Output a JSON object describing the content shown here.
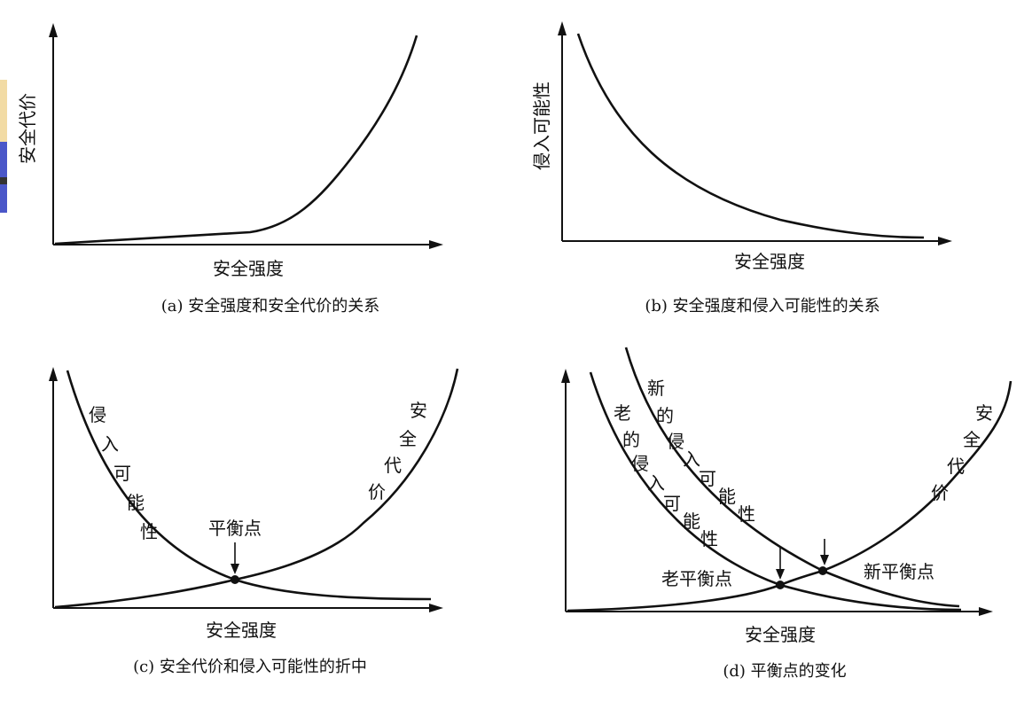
{
  "decor": {
    "strip_colors": [
      "#f2dba4",
      "#4a57c9",
      "#333333",
      "#4a57c9"
    ]
  },
  "panels": {
    "a": {
      "ylabel": "安全代价",
      "xlabel": "安全强度",
      "caption": "(a) 安全强度和安全代价的关系"
    },
    "b": {
      "ylabel": "侵入可能性",
      "xlabel": "安全强度",
      "caption": "(b) 安全强度和侵入可能性的关系"
    },
    "c": {
      "xlabel": "安全强度",
      "caption": "(c) 安全代价和侵入可能性的折中",
      "curve_intrusion": [
        "侵",
        "入",
        "可",
        "能",
        "性"
      ],
      "curve_cost": [
        "安",
        "全",
        "代",
        "价"
      ],
      "balance_label": "平衡点"
    },
    "d": {
      "xlabel": "安全强度",
      "caption": "(d) 平衡点的变化",
      "curve_new_intrusion": [
        "新",
        "的",
        "侵",
        "入",
        "可",
        "能",
        "性"
      ],
      "curve_old_intrusion": [
        "老",
        "的",
        "侵",
        "入",
        "可",
        "能",
        "性"
      ],
      "curve_cost": [
        "安",
        "全",
        "代",
        "价"
      ],
      "old_balance_label": "老平衡点",
      "new_balance_label": "新平衡点"
    }
  }
}
